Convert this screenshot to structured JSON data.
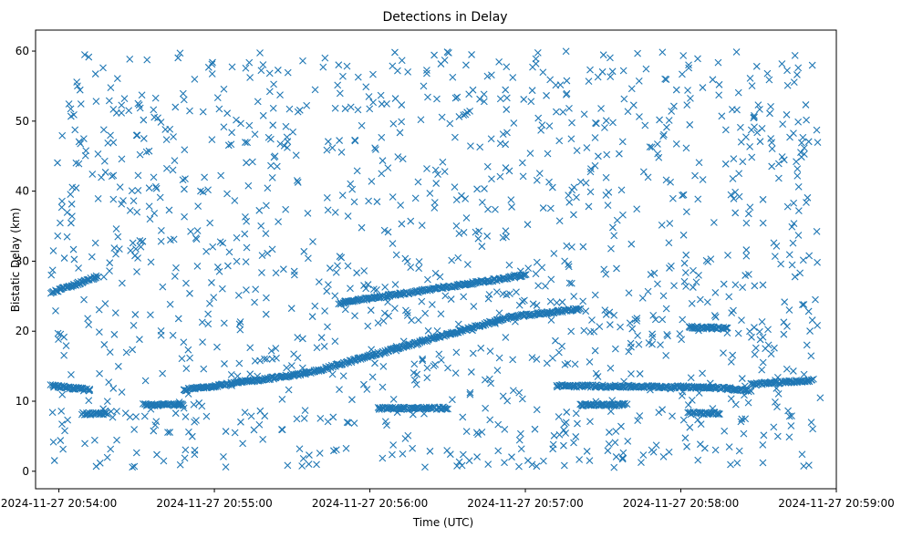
{
  "chart_data": {
    "type": "scatter",
    "title": "Detections in Delay",
    "xlabel": "Time (UTC)",
    "ylabel": "Bistatic Delay (km)",
    "marker": "x",
    "color": "#1f77b4",
    "xlim": [
      -0.15,
      5.0
    ],
    "ylim": [
      -2.5,
      63.0
    ],
    "xticks": [
      {
        "value": 0,
        "label": "2024-11-27 20:54:00"
      },
      {
        "value": 1,
        "label": "2024-11-27 20:55:00"
      },
      {
        "value": 2,
        "label": "2024-11-27 20:56:00"
      },
      {
        "value": 3,
        "label": "2024-11-27 20:57:00"
      },
      {
        "value": 4,
        "label": "2024-11-27 20:58:00"
      },
      {
        "value": 5,
        "label": "2024-11-27 20:59:00"
      }
    ],
    "yticks": [
      0,
      10,
      20,
      30,
      40,
      50,
      60
    ],
    "x_units": "minutes after 2024-11-27 20:54:00 UTC",
    "tracks": [
      {
        "name": "track-a",
        "x": [
          -0.05,
          0.25
        ],
        "y": [
          25.5,
          27.8
        ]
      },
      {
        "name": "track-b",
        "x": [
          -0.05,
          0.2
        ],
        "y": [
          12.2,
          11.6
        ]
      },
      {
        "name": "track-c",
        "x": [
          0.8,
          1.6
        ],
        "y": [
          11.6,
          14.0
        ]
      },
      {
        "name": "track-d",
        "x": [
          1.6,
          2.9
        ],
        "y": [
          14.0,
          22.0
        ]
      },
      {
        "name": "track-e",
        "x": [
          2.9,
          3.35
        ],
        "y": [
          22.0,
          23.2
        ]
      },
      {
        "name": "track-f",
        "x": [
          1.8,
          3.0
        ],
        "y": [
          24.0,
          28.0
        ]
      },
      {
        "name": "track-g",
        "x": [
          3.2,
          4.2
        ],
        "y": [
          12.2,
          12.0
        ]
      },
      {
        "name": "track-h",
        "x": [
          2.05,
          2.5
        ],
        "y": [
          9.0,
          9.0
        ]
      },
      {
        "name": "track-i",
        "x": [
          0.55,
          0.8
        ],
        "y": [
          9.5,
          9.5
        ]
      },
      {
        "name": "track-j",
        "x": [
          4.2,
          4.45
        ],
        "y": [
          12.0,
          11.5
        ]
      },
      {
        "name": "track-k",
        "x": [
          4.05,
          4.3
        ],
        "y": [
          20.6,
          20.4
        ]
      },
      {
        "name": "track-l",
        "x": [
          4.45,
          4.85
        ],
        "y": [
          12.4,
          13.0
        ]
      },
      {
        "name": "track-m",
        "x": [
          0.15,
          0.3
        ],
        "y": [
          8.2,
          8.2
        ]
      },
      {
        "name": "track-n",
        "x": [
          4.05,
          4.25
        ],
        "y": [
          8.3,
          8.3
        ]
      },
      {
        "name": "track-o",
        "x": [
          3.35,
          3.65
        ],
        "y": [
          9.5,
          9.5
        ]
      }
    ],
    "clutter": {
      "count": 1300,
      "x_range": [
        -0.05,
        4.9
      ],
      "y_range": [
        0.5,
        60.0
      ]
    }
  }
}
